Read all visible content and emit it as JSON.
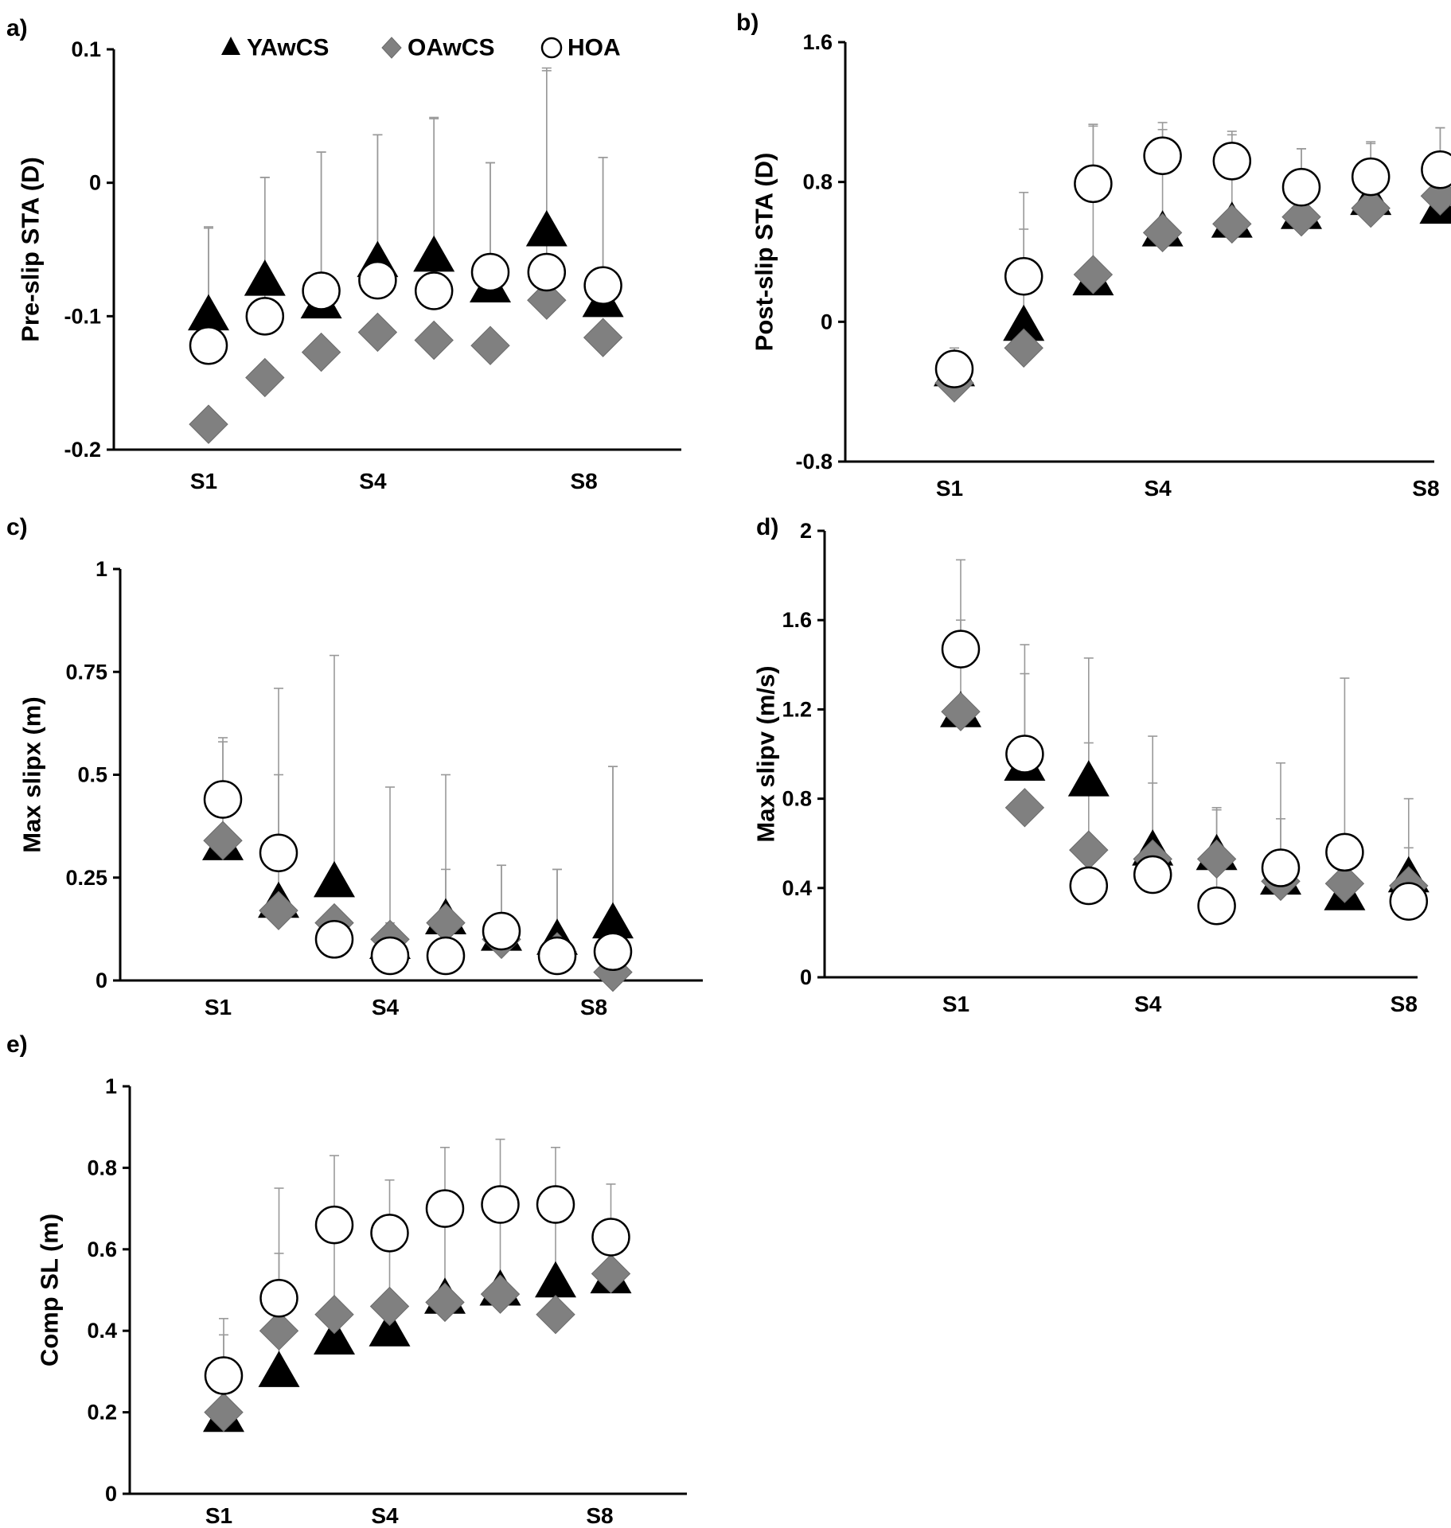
{
  "legend": [
    {
      "name": "YAwCS",
      "marker": "triangle",
      "color": "#000000"
    },
    {
      "name": "OAwCS",
      "marker": "diamond",
      "color": "#808080"
    },
    {
      "name": "HOA",
      "marker": "circle",
      "color": "#ffffff"
    }
  ],
  "chart_data": [
    {
      "panel": "a)",
      "type": "scatter",
      "ylabel": "Pre-slip STA (D)",
      "ylim": [
        -0.2,
        0.1
      ],
      "yticks": [
        -0.2,
        -0.1,
        0,
        0.1
      ],
      "ytick_labels": [
        "-0.2",
        "-0.1",
        "0",
        "0.1"
      ],
      "x": [
        1,
        2,
        3,
        4,
        5,
        6,
        7,
        8
      ],
      "xtick_labels": [
        {
          "x": 1,
          "label": "S1"
        },
        {
          "x": 4,
          "label": "S4"
        },
        {
          "x": 8,
          "label": "S8"
        }
      ],
      "series": [
        {
          "name": "YAwCS",
          "values": [
            -0.099,
            -0.073,
            -0.09,
            -0.059,
            -0.055,
            -0.078,
            -0.036,
            -0.089
          ],
          "err": [
            0.065,
            0.077,
            0.113,
            0.095,
            0.103,
            0.093,
            0.12,
            0.108
          ]
        },
        {
          "name": "OAwCS",
          "values": [
            -0.181,
            -0.146,
            -0.127,
            -0.112,
            -0.118,
            -0.122,
            -0.088,
            -0.116
          ],
          "err": [
            0,
            0,
            0,
            0,
            0,
            0,
            0,
            0
          ]
        },
        {
          "name": "HOA",
          "values": [
            -0.122,
            -0.1,
            -0.081,
            -0.073,
            -0.081,
            -0.067,
            -0.067,
            -0.077
          ],
          "err": [
            0.089,
            0.104,
            0.104,
            0.109,
            0.13,
            0.082,
            0.153,
            0.096
          ]
        }
      ]
    },
    {
      "panel": "b)",
      "type": "scatter",
      "ylabel": "Post-slip STA (D)",
      "ylim": [
        -0.8,
        1.6
      ],
      "yticks": [
        -0.8,
        0,
        0.8,
        1.6
      ],
      "ytick_labels": [
        "-0.8",
        "0",
        "0.8",
        "1.6"
      ],
      "x": [
        1,
        2,
        3,
        4,
        5,
        6,
        7,
        8
      ],
      "xtick_labels": [
        {
          "x": 1,
          "label": "S1"
        },
        {
          "x": 4,
          "label": "S4"
        },
        {
          "x": 8,
          "label": "S8"
        }
      ],
      "series": [
        {
          "name": "YAwCS",
          "values": [
            -0.28,
            -0.02,
            0.24,
            0.52,
            0.57,
            0.62,
            0.7,
            0.65
          ],
          "err": [
            0.1,
            0.55,
            0.88,
            0.58,
            0.5,
            0.37,
            0.32,
            0.46
          ]
        },
        {
          "name": "OAwCS",
          "values": [
            -0.35,
            -0.15,
            0.27,
            0.51,
            0.56,
            0.6,
            0.65,
            0.72
          ],
          "err": [
            0,
            0,
            0,
            0,
            0,
            0,
            0,
            0
          ]
        },
        {
          "name": "HOA",
          "values": [
            -0.27,
            0.26,
            0.79,
            0.95,
            0.92,
            0.77,
            0.83,
            0.87
          ],
          "err": [
            0.12,
            0.48,
            0.34,
            0.19,
            0.17,
            0.22,
            0.2,
            0.24
          ]
        }
      ]
    },
    {
      "panel": "c)",
      "type": "scatter",
      "ylabel": "Max slipx (m)",
      "ylim": [
        0,
        1
      ],
      "yticks": [
        0,
        0.25,
        0.5,
        0.75,
        1
      ],
      "ytick_labels": [
        "0",
        "0.25",
        "0.5",
        "0.75",
        "1"
      ],
      "x": [
        1,
        2,
        3,
        4,
        5,
        6,
        7,
        8
      ],
      "xtick_labels": [
        {
          "x": 1,
          "label": "S1"
        },
        {
          "x": 4,
          "label": "S4"
        },
        {
          "x": 8,
          "label": "S8"
        }
      ],
      "series": [
        {
          "name": "YAwCS",
          "values": [
            0.33,
            0.19,
            0.24,
            0.09,
            0.15,
            0.11,
            0.1,
            0.14
          ],
          "err": [
            0.25,
            0.31,
            0.55,
            0.38,
            0.35,
            0.17,
            0.17,
            0.38
          ]
        },
        {
          "name": "OAwCS",
          "values": [
            0.34,
            0.17,
            0.14,
            0.1,
            0.14,
            0.1,
            0.07,
            0.02
          ],
          "err": [
            0,
            0,
            0,
            0,
            0,
            0,
            0,
            0
          ]
        },
        {
          "name": "HOA",
          "values": [
            0.44,
            0.31,
            0.1,
            0.06,
            0.06,
            0.12,
            0.06,
            0.07
          ],
          "err": [
            0.15,
            0.4,
            0,
            0.08,
            0.21,
            0.16,
            0.21,
            0.45
          ]
        }
      ]
    },
    {
      "panel": "d)",
      "type": "scatter",
      "ylabel": "Max slipv (m/s)",
      "ylim": [
        0,
        2
      ],
      "yticks": [
        0,
        0.4,
        0.8,
        1.2,
        1.6,
        2
      ],
      "ytick_labels": [
        "0",
        "0.4",
        "0.8",
        "1.2",
        "1.6",
        "2"
      ],
      "x": [
        1,
        2,
        3,
        4,
        5,
        6,
        7,
        8
      ],
      "xtick_labels": [
        {
          "x": 1,
          "label": "S1"
        },
        {
          "x": 4,
          "label": "S4"
        },
        {
          "x": 8,
          "label": "S8"
        }
      ],
      "series": [
        {
          "name": "YAwCS",
          "values": [
            1.19,
            0.95,
            0.88,
            0.57,
            0.55,
            0.44,
            0.37,
            0.45
          ],
          "err": [
            0.41,
            0.41,
            0.17,
            0.3,
            0.2,
            0.27,
            0.25,
            0.13
          ]
        },
        {
          "name": "OAwCS",
          "values": [
            1.19,
            0.76,
            0.57,
            0.53,
            0.53,
            0.43,
            0.42,
            0.41
          ],
          "err": [
            0,
            0,
            0,
            0,
            0,
            0,
            0,
            0
          ]
        },
        {
          "name": "HOA",
          "values": [
            1.47,
            1.0,
            0.41,
            0.46,
            0.32,
            0.49,
            0.56,
            0.34
          ],
          "err": [
            0.4,
            0.49,
            1.02,
            0.62,
            0.44,
            0.47,
            0.78,
            0.46
          ]
        }
      ]
    },
    {
      "panel": "e)",
      "type": "scatter",
      "ylabel": "Comp SL (m)",
      "ylim": [
        0,
        1
      ],
      "yticks": [
        0,
        0.2,
        0.4,
        0.6,
        0.8,
        1
      ],
      "ytick_labels": [
        "0",
        "0.2",
        "0.4",
        "0.6",
        "0.8",
        "1"
      ],
      "x": [
        1,
        2,
        3,
        4,
        5,
        6,
        7,
        8
      ],
      "xtick_labels": [
        {
          "x": 1,
          "label": "S1"
        },
        {
          "x": 4,
          "label": "S4"
        },
        {
          "x": 8,
          "label": "S8"
        }
      ],
      "series": [
        {
          "name": "YAwCS",
          "values": [
            0.19,
            0.3,
            0.38,
            0.4,
            0.48,
            0.5,
            0.52,
            0.53
          ],
          "err": [
            0.2,
            0.29,
            0.3,
            0.23,
            0.21,
            0.21,
            0.16,
            0.1
          ]
        },
        {
          "name": "OAwCS",
          "values": [
            0.2,
            0.4,
            0.44,
            0.46,
            0.47,
            0.49,
            0.44,
            0.54
          ],
          "err": [
            0,
            0,
            0,
            0,
            0,
            0,
            0,
            0
          ]
        },
        {
          "name": "HOA",
          "values": [
            0.29,
            0.48,
            0.66,
            0.64,
            0.7,
            0.71,
            0.71,
            0.63
          ],
          "err": [
            0.14,
            0.27,
            0.17,
            0.13,
            0.15,
            0.16,
            0.14,
            0.13
          ]
        }
      ]
    }
  ]
}
